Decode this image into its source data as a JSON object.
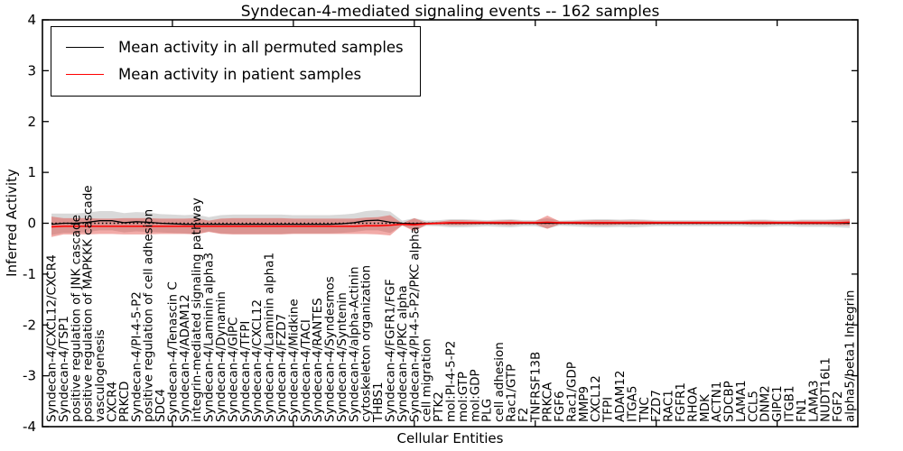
{
  "chart_data": {
    "type": "line",
    "title": "Syndecan-4-mediated signaling events -- 162 samples",
    "xlabel": "Cellular Entities",
    "ylabel": "Inferred Activity",
    "ylim": [
      -4,
      4
    ],
    "yticks": [
      "4",
      "3",
      "2",
      "1",
      "0",
      "-1",
      "-2",
      "-3",
      "-4"
    ],
    "grid": false,
    "legend_position": "upper-left",
    "zero_reference_line": true,
    "categories": [
      "Syndecan-4/CXCL12/CXCR4",
      "Syndecan-4/TSP1",
      "positive regulation of JNK cascade",
      "positive regulation of MAPKKK cascade",
      "vasculogenesis",
      "CXCR4",
      "PRKCD",
      "Syndecan-4/PI-4-5-P2",
      "positive regulation of cell adhesion",
      "SDC4",
      "Syndecan-4/Tenascin C",
      "Syndecan-4/ADAM12",
      "integrin-mediated signaling pathway",
      "Syndecan-4/Laminin alpha3",
      "Syndecan-4/Dynamin",
      "Syndecan-4/GIPC",
      "Syndecan-4/TFPI",
      "Syndecan-4/CXCL12",
      "Syndecan-4/Laminin alpha1",
      "Syndecan-4/FZD7",
      "Syndecan-4/Midkine",
      "Syndecan-4/TACI",
      "Syndecan-4/RANTES",
      "Syndecan-4/Syndesmos",
      "Syndecan-4/Syntenin",
      "Syndecan-4/alpha-Actinin",
      "cytoskeleton organization",
      "THBS1",
      "Syndecan-4/FGFR1/FGF",
      "Syndecan-4/PKC alpha",
      "Syndecan-4/PI-4-5-P2/PKC alpha",
      "cell migration",
      "PTK2",
      "mol:PI-4-5-P2",
      "mol:GTP",
      "mol:GDP",
      "PLG",
      "cell adhesion",
      "Rac1/GTP",
      "F2",
      "TNFRSF13B",
      "PRKCA",
      "FGF6",
      "Rac1/GDP",
      "MMP9",
      "CXCL12",
      "TFPI",
      "ADAM12",
      "ITGA5",
      "TNC",
      "FZD7",
      "RAC1",
      "FGFR1",
      "RHOA",
      "MDK",
      "ACTN1",
      "SDCBP",
      "LAMA1",
      "CCL5",
      "DNM2",
      "GIPC1",
      "ITGB1",
      "FN1",
      "LAMA3",
      "NUDT16L1",
      "FGF2",
      "alpha5/beta1 Integrin"
    ],
    "series": [
      {
        "name": "Mean activity in all permuted samples",
        "color": "#000000",
        "values": [
          -0.02,
          0.0,
          0.0,
          0.02,
          0.05,
          0.05,
          0.01,
          0.03,
          0.02,
          0.0,
          -0.01,
          -0.02,
          -0.02,
          -0.02,
          -0.02,
          -0.02,
          -0.02,
          -0.02,
          -0.02,
          -0.02,
          -0.02,
          -0.02,
          -0.02,
          -0.02,
          -0.01,
          0.01,
          0.05,
          0.06,
          0.02,
          0.0,
          -0.01,
          0.0,
          0.0,
          0.0,
          0.0,
          0.0,
          0.0,
          0.0,
          0.0,
          0.0,
          0.0,
          0.0,
          0.0,
          0.0,
          0.0,
          0.0,
          0.0,
          0.0,
          0.0,
          0.0,
          0.0,
          0.0,
          0.0,
          0.0,
          0.0,
          0.0,
          0.0,
          0.0,
          0.0,
          0.0,
          0.0,
          0.0,
          0.0,
          0.0,
          0.0,
          0.0,
          0.0
        ],
        "std": [
          0.21,
          0.19,
          0.19,
          0.19,
          0.19,
          0.19,
          0.19,
          0.19,
          0.19,
          0.18,
          0.18,
          0.18,
          0.19,
          0.14,
          0.18,
          0.19,
          0.19,
          0.19,
          0.19,
          0.19,
          0.18,
          0.18,
          0.18,
          0.18,
          0.18,
          0.18,
          0.19,
          0.2,
          0.21,
          0.05,
          0.11,
          0.05,
          0.06,
          0.08,
          0.08,
          0.07,
          0.06,
          0.07,
          0.08,
          0.06,
          0.06,
          0.1,
          0.05,
          0.06,
          0.07,
          0.08,
          0.08,
          0.07,
          0.08,
          0.07,
          0.06,
          0.06,
          0.06,
          0.06,
          0.06,
          0.06,
          0.06,
          0.06,
          0.07,
          0.07,
          0.06,
          0.06,
          0.07,
          0.07,
          0.07,
          0.08,
          0.09
        ]
      },
      {
        "name": "Mean activity in patient samples",
        "color": "#ff0000",
        "values": [
          -0.07,
          -0.06,
          -0.06,
          -0.06,
          -0.06,
          -0.06,
          -0.06,
          -0.06,
          -0.06,
          -0.06,
          -0.06,
          -0.06,
          -0.06,
          -0.06,
          -0.06,
          -0.06,
          -0.06,
          -0.06,
          -0.06,
          -0.06,
          -0.06,
          -0.06,
          -0.06,
          -0.06,
          -0.06,
          -0.06,
          -0.05,
          -0.05,
          -0.04,
          -0.02,
          -0.03,
          -0.01,
          0.0,
          0.01,
          0.01,
          0.01,
          0.01,
          0.01,
          0.01,
          0.01,
          0.01,
          0.02,
          0.01,
          0.01,
          0.01,
          0.01,
          0.01,
          0.01,
          0.01,
          0.01,
          0.01,
          0.01,
          0.01,
          0.01,
          0.01,
          0.01,
          0.01,
          0.01,
          0.01,
          0.01,
          0.01,
          0.01,
          0.01,
          0.01,
          0.01,
          0.01,
          0.02
        ],
        "std": [
          0.2,
          0.16,
          0.16,
          0.16,
          0.15,
          0.15,
          0.16,
          0.16,
          0.16,
          0.15,
          0.15,
          0.15,
          0.16,
          0.11,
          0.15,
          0.16,
          0.16,
          0.16,
          0.16,
          0.16,
          0.15,
          0.15,
          0.15,
          0.15,
          0.15,
          0.15,
          0.16,
          0.17,
          0.2,
          0.02,
          0.13,
          0.02,
          0.03,
          0.05,
          0.05,
          0.04,
          0.03,
          0.04,
          0.05,
          0.03,
          0.03,
          0.13,
          0.03,
          0.03,
          0.04,
          0.05,
          0.05,
          0.04,
          0.04,
          0.04,
          0.03,
          0.03,
          0.03,
          0.03,
          0.03,
          0.03,
          0.03,
          0.03,
          0.04,
          0.04,
          0.03,
          0.03,
          0.04,
          0.04,
          0.04,
          0.05,
          0.06
        ]
      }
    ],
    "colors": {
      "permuted_line": "#000000",
      "patient_line": "#ff0000",
      "permuted_band": "rgba(130,130,130,0.30)",
      "patient_band": "rgba(222,45,38,0.40)",
      "axis": "#000000"
    }
  }
}
